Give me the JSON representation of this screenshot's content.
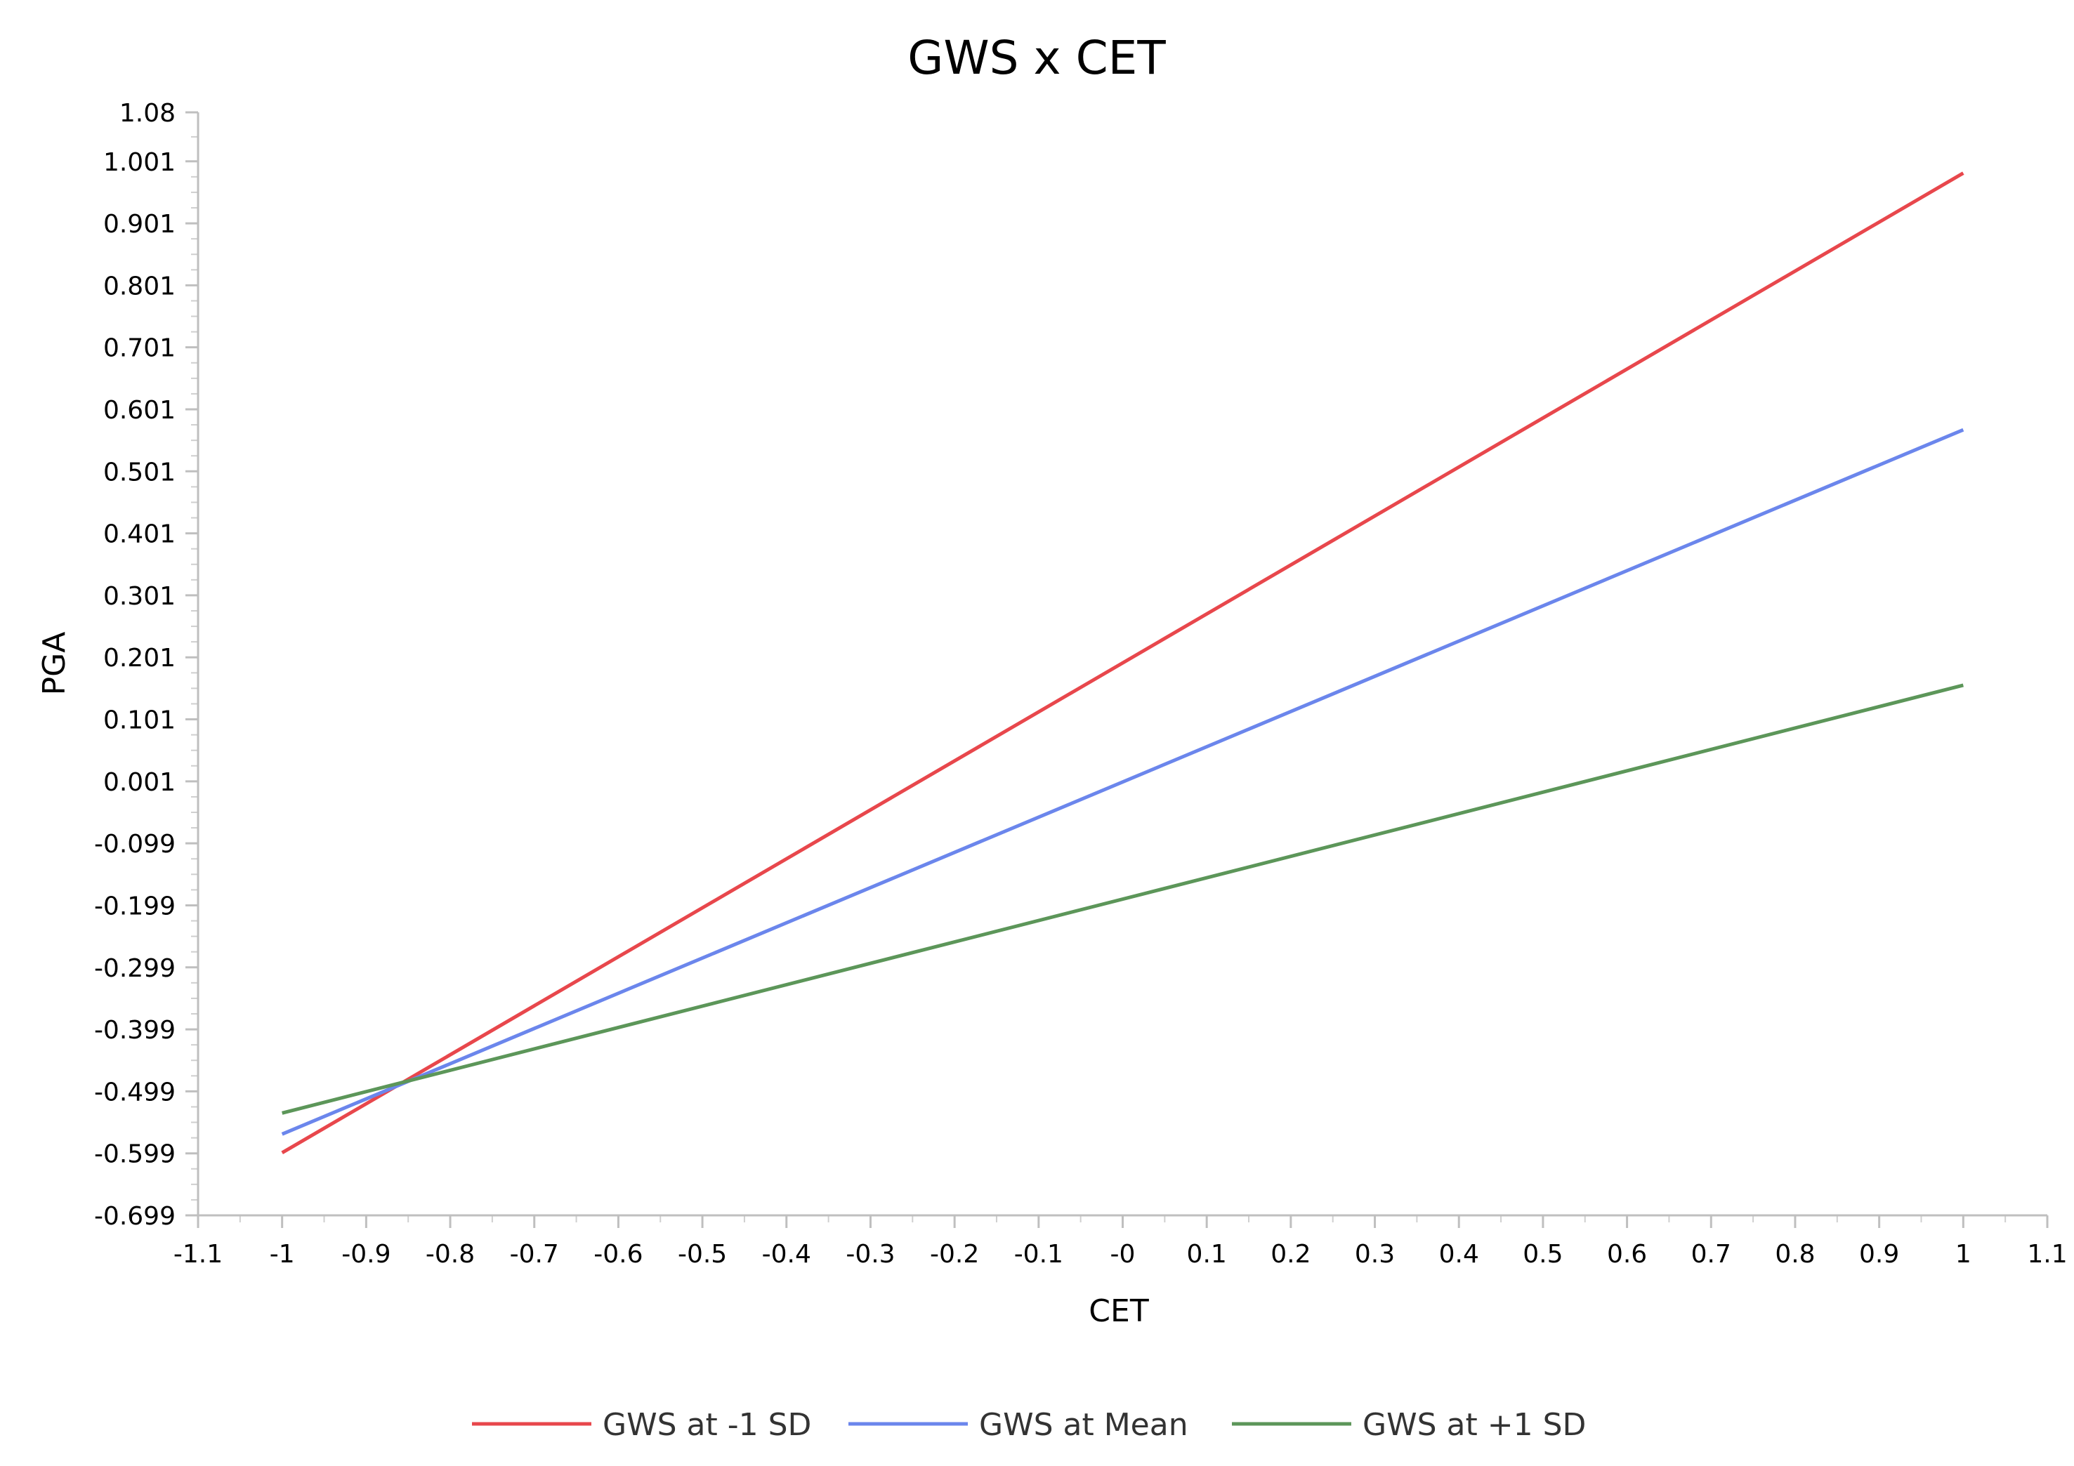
{
  "chart_data": {
    "type": "line",
    "title": "GWS x CET",
    "xlabel": "CET",
    "ylabel": "PGA",
    "xlim": [
      -1.1,
      1.1
    ],
    "ylim": [
      -0.699,
      1.08
    ],
    "x_ticks": [
      "-1.1",
      "-1",
      "-0.9",
      "-0.8",
      "-0.7",
      "-0.6",
      "-0.5",
      "-0.4",
      "-0.3",
      "-0.2",
      "-0.1",
      "-0",
      "0.1",
      "0.2",
      "0.3",
      "0.4",
      "0.5",
      "0.6",
      "0.7",
      "0.8",
      "0.9",
      "1",
      "1.1"
    ],
    "x_tick_values": [
      -1.1,
      -1.0,
      -0.9,
      -0.8,
      -0.7,
      -0.6,
      -0.5,
      -0.4,
      -0.3,
      -0.2,
      -0.1,
      0,
      0.1,
      0.2,
      0.3,
      0.4,
      0.5,
      0.6,
      0.7,
      0.8,
      0.9,
      1.0,
      1.1
    ],
    "y_ticks": [
      "1.08",
      "1.001",
      "0.901",
      "0.801",
      "0.701",
      "0.601",
      "0.501",
      "0.401",
      "0.301",
      "0.201",
      "0.101",
      "0.001",
      "-0.099",
      "-0.199",
      "-0.299",
      "-0.399",
      "-0.499",
      "-0.599",
      "-0.699"
    ],
    "y_tick_values": [
      1.08,
      1.001,
      0.901,
      0.801,
      0.701,
      0.601,
      0.501,
      0.401,
      0.301,
      0.201,
      0.101,
      0.001,
      -0.099,
      -0.199,
      -0.299,
      -0.399,
      -0.499,
      -0.599,
      -0.699
    ],
    "grid": false,
    "legend_position": "bottom",
    "series": [
      {
        "name": "GWS at -1 SD",
        "color": "#e8474c",
        "x": [
          -1,
          1
        ],
        "y": [
          -0.598,
          0.982
        ]
      },
      {
        "name": "GWS at Mean",
        "color": "#6b86ec",
        "x": [
          -1,
          1
        ],
        "y": [
          -0.568,
          0.568
        ]
      },
      {
        "name": "GWS at +1 SD",
        "color": "#5c9659",
        "x": [
          -1,
          1
        ],
        "y": [
          -0.534,
          0.156
        ]
      }
    ]
  }
}
